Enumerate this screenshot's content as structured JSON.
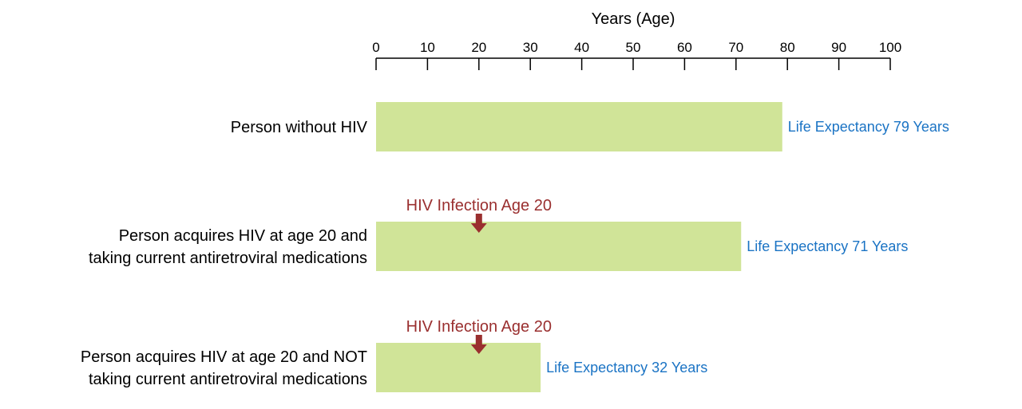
{
  "chart_data": {
    "type": "bar",
    "orientation": "horizontal",
    "title": "",
    "xlabel": "Years (Age)",
    "ylabel": "",
    "xlim": [
      0,
      100
    ],
    "xticks": [
      0,
      10,
      20,
      30,
      40,
      50,
      60,
      70,
      80,
      90,
      100
    ],
    "grid": false,
    "categories": [
      [
        "Person without HIV"
      ],
      [
        "Person acquires HIV at age 20 and",
        "taking current antiretroviral medications"
      ],
      [
        "Person acquires HIV at age 20 and NOT",
        "taking current antiretroviral medications"
      ]
    ],
    "values": [
      79,
      71,
      32
    ],
    "data_labels": [
      "Life Expectancy 79 Years",
      "Life Expectancy 71 Years",
      "Life Expectancy 32 Years"
    ],
    "annotations": [
      null,
      {
        "text": "HIV Infection Age 20",
        "age": 20,
        "marker": "down-arrow"
      },
      {
        "text": "HIV Infection Age 20",
        "age": 20,
        "marker": "down-arrow"
      }
    ],
    "colors": {
      "bar": "#d0e498",
      "label": "#1a73c4",
      "annotation": "#9a2f2f",
      "axis": "#000000"
    }
  }
}
